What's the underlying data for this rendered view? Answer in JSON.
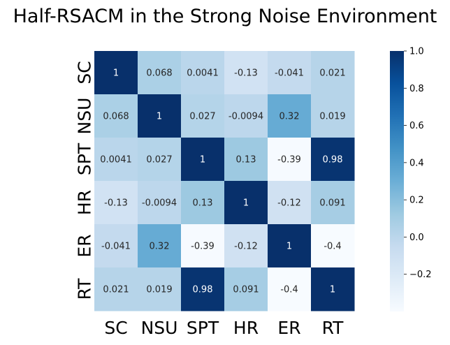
{
  "chart_data": {
    "type": "heatmap",
    "title": "Half-RSACM in the Strong Noise Environment",
    "xlabel": "",
    "ylabel": "",
    "x_categories": [
      "SC",
      "NSU",
      "SPT",
      "HR",
      "ER",
      "RT"
    ],
    "y_categories": [
      "SC",
      "NSU",
      "SPT",
      "HR",
      "ER",
      "RT"
    ],
    "values": [
      [
        1,
        0.068,
        0.0041,
        -0.13,
        -0.041,
        0.021
      ],
      [
        0.068,
        1,
        0.027,
        -0.0094,
        0.32,
        0.019
      ],
      [
        0.0041,
        0.027,
        1,
        0.13,
        -0.39,
        0.98
      ],
      [
        -0.13,
        -0.0094,
        0.13,
        1,
        -0.12,
        0.091
      ],
      [
        -0.041,
        0.32,
        -0.39,
        -0.12,
        1,
        -0.4
      ],
      [
        0.021,
        0.019,
        0.98,
        0.091,
        -0.4,
        1
      ]
    ],
    "annotations": [
      [
        "1",
        "0.068",
        "0.0041",
        "-0.13",
        "-0.041",
        "0.021"
      ],
      [
        "0.068",
        "1",
        "0.027",
        "-0.0094",
        "0.32",
        "0.019"
      ],
      [
        "0.0041",
        "0.027",
        "1",
        "0.13",
        "-0.39",
        "0.98"
      ],
      [
        "-0.13",
        "-0.0094",
        "0.13",
        "1",
        "-0.12",
        "0.091"
      ],
      [
        "-0.041",
        "0.32",
        "-0.39",
        "-0.12",
        "1",
        "-0.4"
      ],
      [
        "0.021",
        "0.019",
        "0.98",
        "0.091",
        "-0.4",
        "1"
      ]
    ],
    "colormap": "Blues",
    "vmin": -0.4,
    "vmax": 1.0,
    "colorbar": {
      "ticks": [
        1.0,
        0.8,
        0.6,
        0.4,
        0.2,
        0.0,
        -0.2
      ],
      "tick_labels": [
        "1.0",
        "0.8",
        "0.6",
        "0.4",
        "0.2",
        "0.0",
        "−0.2"
      ],
      "placement": "right"
    },
    "grid": false,
    "legend": "none"
  }
}
